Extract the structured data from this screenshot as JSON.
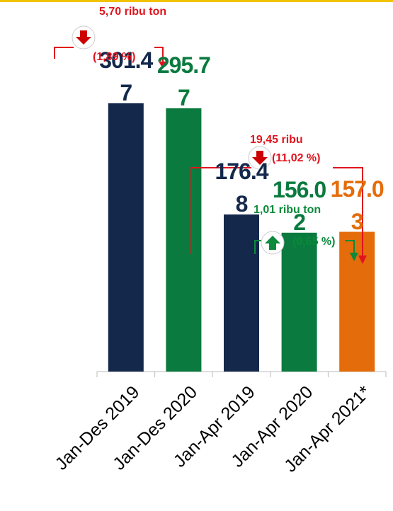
{
  "chart_data": {
    "type": "bar",
    "categories": [
      "Jan-Des 2019",
      "Jan-Des 2020",
      "Jan-Apr 2019",
      "Jan-Apr 2020",
      "Jan-Apr 2021*"
    ],
    "values": [
      301.47,
      295.77,
      176.48,
      156.02,
      157.03
    ],
    "colors": [
      "#14284b",
      "#0a7a3e",
      "#14284b",
      "#0a7a3e",
      "#e46c0a"
    ],
    "ylim": [
      0,
      330
    ],
    "annotations": [
      {
        "text": "5,70 ribu ton",
        "color": "#e0141e"
      },
      {
        "text": "(1,89 %)",
        "color": "#e0141e"
      },
      {
        "text": "19,45 ribu",
        "color": "#e0141e"
      },
      {
        "text": "(11,02 %)",
        "color": "#e0141e"
      },
      {
        "text": "1,01 ribu ton",
        "color": "#0a8a3a"
      },
      {
        "text": "(0,65 %)",
        "color": "#0a8a3a"
      }
    ]
  }
}
